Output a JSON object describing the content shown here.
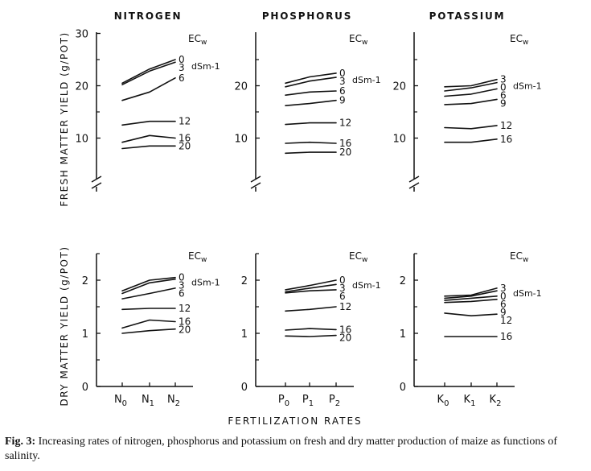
{
  "figure": {
    "y_label_top": "FRESH MATTER YIELD (g/POT)",
    "y_label_bottom": "DRY MATTER YIELD (g/POT)",
    "x_label": "FERTILIZATION RATES"
  },
  "caption": {
    "label": "Fig. 3:",
    "text": "Increasing rates of nitrogen, phosphorus and potassium on fresh and dry matter production of maize as functions of salinity."
  },
  "legend": {
    "title": "ECw",
    "unit": "dSm-1"
  },
  "chart_data": [
    {
      "type": "line",
      "title": "NITROGEN",
      "ylabel": "FRESH MATTER YIELD (g/POT)",
      "ylim": [
        0,
        30
      ],
      "yticks": [
        "10",
        "20",
        "30"
      ],
      "axis_break": true,
      "categories": [
        "N0",
        "N1",
        "N2"
      ],
      "series": [
        {
          "name": "0",
          "values": [
            20.5,
            23.2,
            25.0
          ]
        },
        {
          "name": "3",
          "values": [
            20.2,
            22.8,
            24.5
          ]
        },
        {
          "name": "6",
          "values": [
            17.2,
            18.8,
            21.5
          ]
        },
        {
          "name": "12",
          "values": [
            12.5,
            13.2,
            13.2
          ]
        },
        {
          "name": "16",
          "values": [
            9.2,
            10.5,
            10.0
          ]
        },
        {
          "name": "20",
          "values": [
            8.0,
            8.5,
            8.5
          ]
        }
      ]
    },
    {
      "type": "line",
      "title": "PHOSPHORUS",
      "ylabel": "",
      "ylim": [
        0,
        30
      ],
      "yticks": [
        "10",
        "20"
      ],
      "axis_break": true,
      "categories": [
        "P0",
        "P1",
        "P2"
      ],
      "series": [
        {
          "name": "0",
          "values": [
            20.5,
            21.7,
            22.4
          ]
        },
        {
          "name": "3",
          "values": [
            19.8,
            20.9,
            21.6
          ]
        },
        {
          "name": "6",
          "values": [
            18.2,
            18.8,
            19.0
          ]
        },
        {
          "name": "9",
          "values": [
            16.2,
            16.6,
            17.2
          ]
        },
        {
          "name": "12",
          "values": [
            12.6,
            12.9,
            12.9
          ]
        },
        {
          "name": "16",
          "values": [
            9.0,
            9.2,
            9.0
          ]
        },
        {
          "name": "20",
          "values": [
            7.1,
            7.3,
            7.3
          ]
        }
      ]
    },
    {
      "type": "line",
      "title": "POTASSIUM",
      "ylabel": "",
      "ylim": [
        0,
        30
      ],
      "yticks": [
        "10",
        "20"
      ],
      "axis_break": true,
      "categories": [
        "K0",
        "K1",
        "K2"
      ],
      "series": [
        {
          "name": "3",
          "values": [
            19.8,
            20.0,
            21.2
          ]
        },
        {
          "name": "0",
          "values": [
            19.0,
            19.6,
            20.6
          ]
        },
        {
          "name": "6",
          "values": [
            18.0,
            18.4,
            19.4
          ]
        },
        {
          "name": "9",
          "values": [
            16.4,
            16.6,
            17.4
          ]
        },
        {
          "name": "12",
          "values": [
            12.0,
            11.8,
            12.4
          ]
        },
        {
          "name": "16",
          "values": [
            9.2,
            9.2,
            9.8
          ]
        }
      ]
    },
    {
      "type": "line",
      "title": "",
      "ylabel": "DRY MATTER YIELD (g/POT)",
      "ylim": [
        0,
        2.5
      ],
      "yticks": [
        "0",
        "1",
        "2"
      ],
      "axis_break": false,
      "categories": [
        "N0",
        "N1",
        "N2"
      ],
      "series": [
        {
          "name": "0",
          "values": [
            1.8,
            2.0,
            2.05
          ]
        },
        {
          "name": "3",
          "values": [
            1.75,
            1.95,
            2.02
          ]
        },
        {
          "name": "6",
          "values": [
            1.65,
            1.75,
            1.85
          ]
        },
        {
          "name": "12",
          "values": [
            1.45,
            1.47,
            1.47
          ]
        },
        {
          "name": "16",
          "values": [
            1.1,
            1.25,
            1.22
          ]
        },
        {
          "name": "20",
          "values": [
            1.0,
            1.05,
            1.08
          ]
        }
      ]
    },
    {
      "type": "line",
      "title": "",
      "ylabel": "",
      "ylim": [
        0,
        2.5
      ],
      "yticks": [
        "0",
        "1",
        "2"
      ],
      "axis_break": false,
      "categories": [
        "P0",
        "P1",
        "P2"
      ],
      "series": [
        {
          "name": "0",
          "values": [
            1.82,
            1.9,
            2.0
          ]
        },
        {
          "name": "3",
          "values": [
            1.78,
            1.85,
            1.92
          ]
        },
        {
          "name": "6",
          "values": [
            1.76,
            1.8,
            1.82
          ]
        },
        {
          "name": "12",
          "values": [
            1.42,
            1.45,
            1.5
          ]
        },
        {
          "name": "16",
          "values": [
            1.06,
            1.09,
            1.07
          ]
        },
        {
          "name": "20",
          "values": [
            0.95,
            0.94,
            0.96
          ]
        }
      ]
    },
    {
      "type": "line",
      "title": "",
      "ylabel": "",
      "ylim": [
        0,
        2.5
      ],
      "yticks": [
        "0",
        "1",
        "2"
      ],
      "axis_break": false,
      "categories": [
        "K0",
        "K1",
        "K2"
      ],
      "series": [
        {
          "name": "3",
          "values": [
            1.7,
            1.72,
            1.85
          ]
        },
        {
          "name": "0",
          "values": [
            1.66,
            1.7,
            1.8
          ]
        },
        {
          "name": "6",
          "values": [
            1.62,
            1.66,
            1.7
          ]
        },
        {
          "name": "9",
          "values": [
            1.58,
            1.6,
            1.64
          ]
        },
        {
          "name": "12",
          "values": [
            1.38,
            1.33,
            1.36
          ]
        },
        {
          "name": "16",
          "values": [
            0.94,
            0.94,
            0.94
          ]
        }
      ]
    }
  ]
}
